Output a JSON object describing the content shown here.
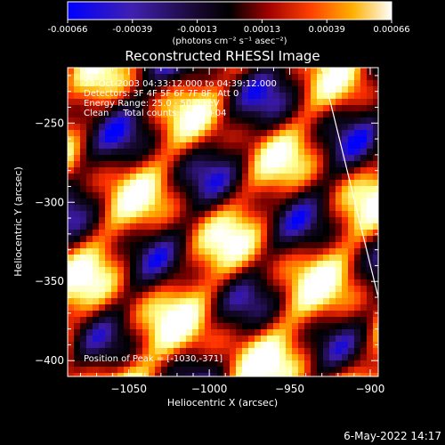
{
  "colorbar": {
    "ticks": [
      "-0.00066",
      "-0.00039",
      "-0.00013",
      "0.00013",
      "0.00039",
      "0.00066"
    ],
    "units": "(photons cm⁻² s⁻¹ asec⁻²)"
  },
  "chart_data": {
    "type": "heatmap",
    "title": "Reconstructed RHESSI Image",
    "xlabel": "Heliocentric X (arcsec)",
    "ylabel": "Heliocentric Y (arcsec)",
    "xlim": [
      -1088,
      -895
    ],
    "ylim": [
      -410,
      -215
    ],
    "xticks": [
      -1050,
      -1000,
      -950,
      -900
    ],
    "xtick_labels": [
      "−1050",
      "−1000",
      "−950",
      "−900"
    ],
    "yticks": [
      -250,
      -300,
      -350,
      -400
    ],
    "ytick_labels": [
      "−250",
      "−300",
      "−350",
      "−400"
    ],
    "value_range": [
      -0.00066,
      0.00066
    ],
    "colormap": [
      "#0000ff",
      "#3a1aa0",
      "#140828",
      "#000000",
      "#7a0000",
      "#ff3000",
      "#ffb000",
      "#ffff90",
      "#ffffff"
    ],
    "annotations": [
      "23-Oct-2003 04:33:12.000 to 04:39:12.000",
      "Detectors: 3F 4F 5F 6F 7F 8F, Att 0",
      "Energy Range: 25.0 - 50.0 keV",
      "Clean     Total counts: 1.27E+04"
    ],
    "peak_label": "Position of Peak = [-1030,-371]",
    "limb_line": [
      [
        -930,
        -215
      ],
      [
        -895,
        -360
      ]
    ]
  },
  "footer": {
    "timestamp": "6-May-2022 14:17"
  }
}
